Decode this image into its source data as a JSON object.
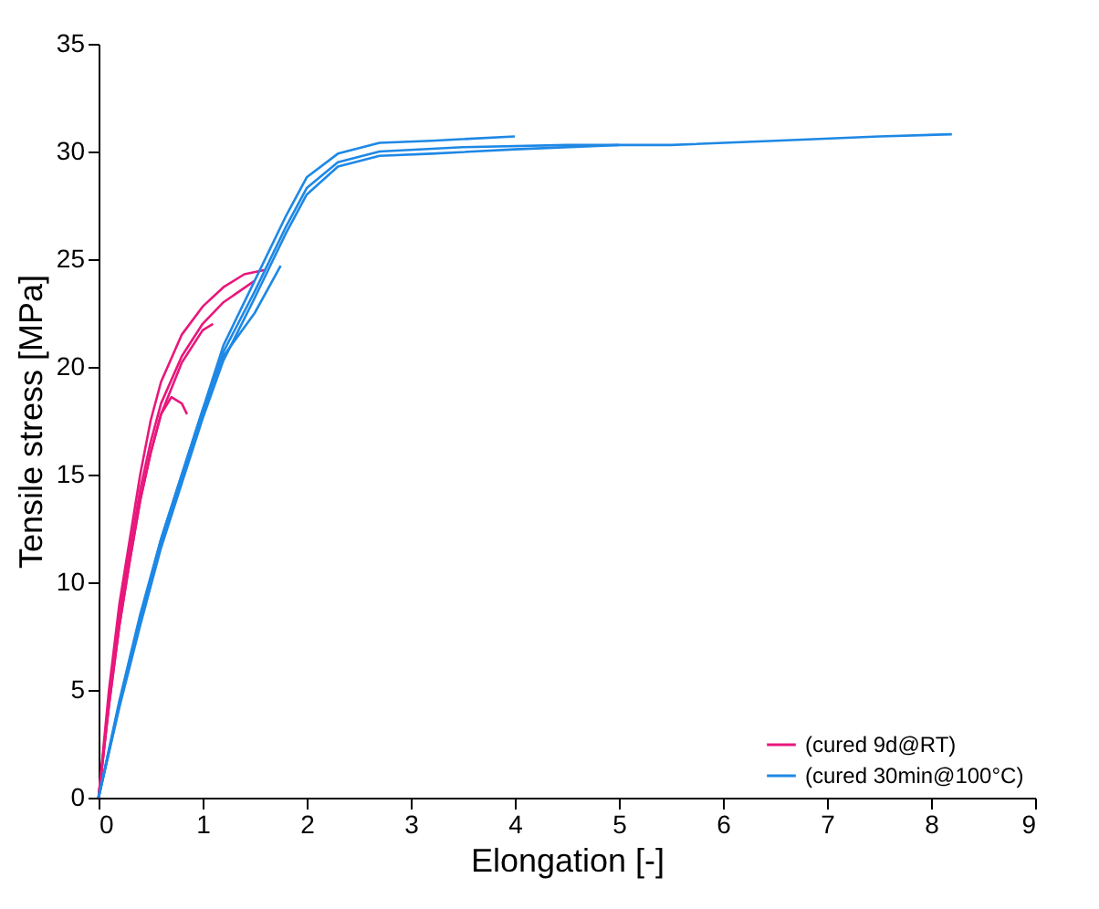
{
  "chart_data": {
    "type": "line",
    "xlabel": "Elongation [-]",
    "ylabel": "Tensile stress [MPa]",
    "xlim": [
      0,
      9
    ],
    "xticks": [
      0,
      1,
      2,
      3,
      4,
      5,
      6,
      7,
      8,
      9
    ],
    "ylim": [
      0,
      35
    ],
    "yticks": [
      0,
      5,
      10,
      15,
      20,
      25,
      30,
      35
    ],
    "legend": "bottom right",
    "grid": false,
    "marker": "none",
    "line_style": "solid",
    "series": [
      {
        "name": "(cured 9d@RT)",
        "color": "#e8177c",
        "x": [
          0,
          0.1,
          0.2,
          0.3,
          0.4,
          0.5,
          0.6,
          0.8,
          1.0,
          1.2,
          1.4,
          1.6
        ],
        "values": [
          0,
          5,
          9,
          12,
          15,
          17.5,
          19.3,
          21.5,
          22.8,
          23.7,
          24.3,
          24.5
        ]
      },
      {
        "color": "#e8177c",
        "x": [
          0,
          0.1,
          0.2,
          0.3,
          0.4,
          0.5,
          0.6,
          0.8,
          1.0,
          1.2,
          1.5
        ],
        "values": [
          0,
          4.5,
          8.5,
          11.5,
          14.3,
          16.5,
          18.3,
          20.5,
          22,
          23,
          24
        ]
      },
      {
        "color": "#e8177c",
        "x": [
          0,
          0.1,
          0.2,
          0.3,
          0.4,
          0.5,
          0.6,
          0.8,
          1.0,
          1.1
        ],
        "values": [
          0,
          4.3,
          8,
          11,
          13.8,
          16,
          17.8,
          20.2,
          21.7,
          22
        ]
      },
      {
        "color": "#e8177c",
        "x": [
          0,
          0.1,
          0.2,
          0.3,
          0.4,
          0.5,
          0.6,
          0.7,
          0.8,
          0.85
        ],
        "values": [
          0,
          4.3,
          8,
          11,
          13.8,
          16,
          17.8,
          18.6,
          18.3,
          17.8
        ]
      },
      {
        "name": "(cured 30min@100°C)",
        "color": "#1e88e5",
        "x": [
          0,
          0.2,
          0.4,
          0.6,
          0.8,
          1.0,
          1.2,
          1.5,
          1.8,
          2.0,
          2.3,
          2.7,
          3.5,
          4.5,
          5.5,
          6.5,
          7.5,
          8.2
        ],
        "values": [
          0,
          4.3,
          8.2,
          11.8,
          14.8,
          17.8,
          20.7,
          23.5,
          26.5,
          28.3,
          29.5,
          30,
          30.2,
          30.3,
          30.3,
          30.5,
          30.7,
          30.8
        ]
      },
      {
        "color": "#1e88e5",
        "x": [
          0,
          0.2,
          0.4,
          0.6,
          0.8,
          1.0,
          1.2,
          1.5,
          1.75
        ],
        "values": [
          0,
          4.5,
          8.5,
          12,
          15,
          18,
          20.5,
          22.5,
          24.7
        ]
      },
      {
        "color": "#1e88e5",
        "x": [
          0,
          0.2,
          0.4,
          0.6,
          0.8,
          1.0,
          1.2,
          1.5,
          1.8,
          2.0,
          2.3,
          2.7,
          3.2,
          4.0
        ],
        "values": [
          0,
          4.4,
          8.4,
          12,
          15,
          18,
          21,
          24,
          27,
          28.8,
          29.9,
          30.4,
          30.5,
          30.7
        ]
      },
      {
        "color": "#1e88e5",
        "x": [
          0,
          0.2,
          0.4,
          0.6,
          0.8,
          1.0,
          1.2,
          1.5,
          1.8,
          2.0,
          2.3,
          2.7,
          3.2,
          4.0,
          5.0
        ],
        "values": [
          0,
          4.2,
          8,
          11.6,
          14.6,
          17.6,
          20.3,
          23.2,
          26.2,
          28,
          29.3,
          29.8,
          29.9,
          30.1,
          30.3
        ]
      }
    ]
  }
}
